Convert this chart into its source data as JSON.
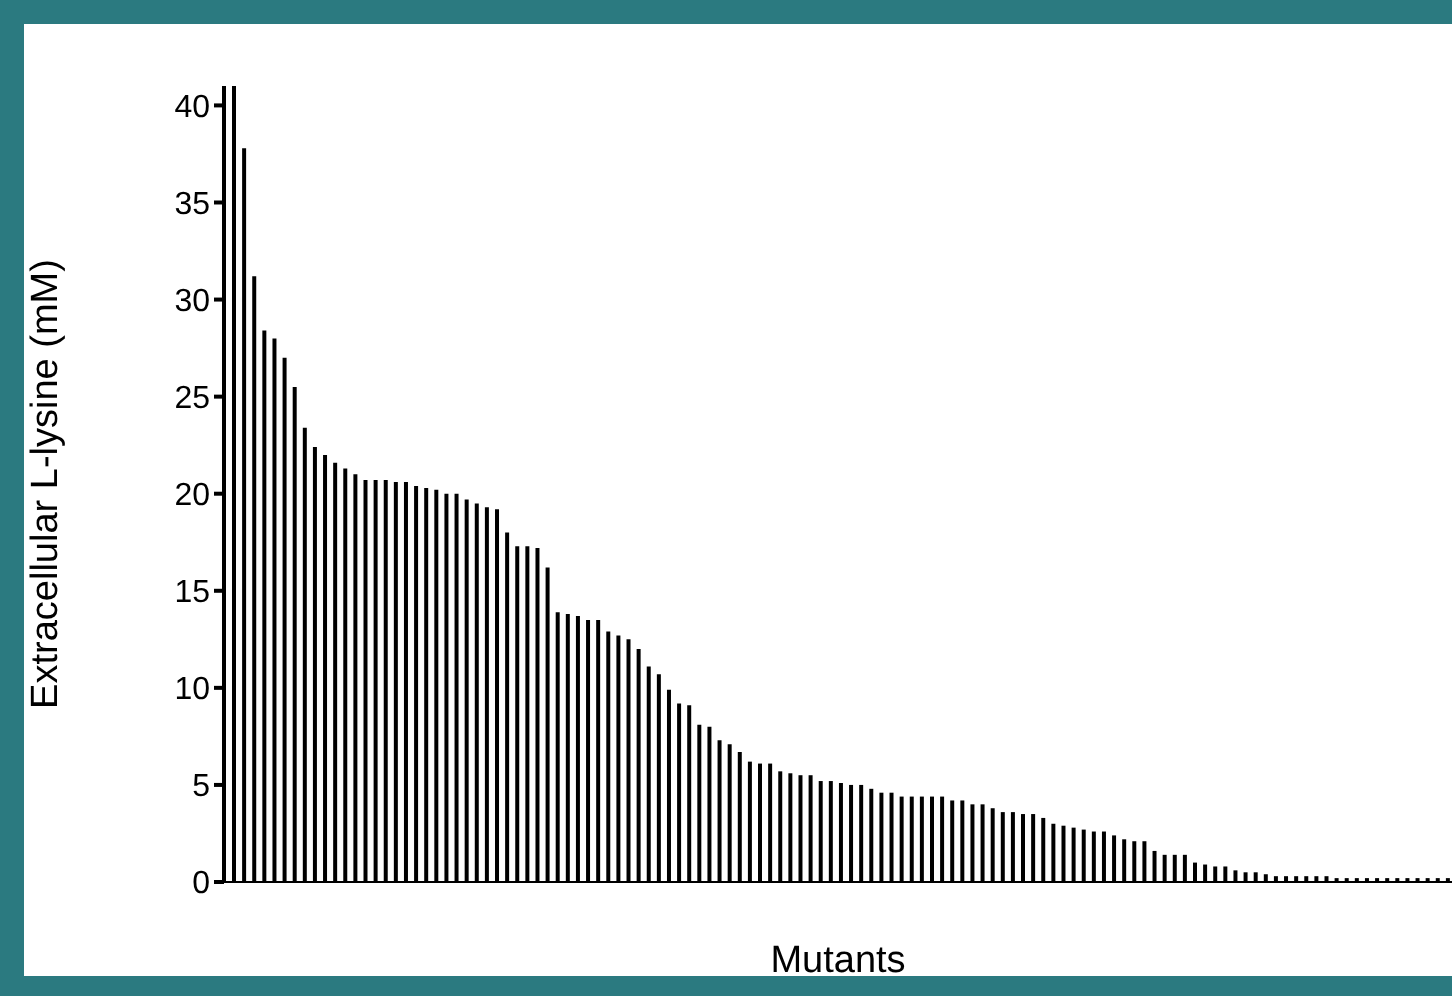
{
  "chart_data": {
    "type": "bar",
    "xlabel": "Mutants",
    "ylabel": "Extracellular L-lysine (mM)",
    "categories": [
      null,
      null,
      null,
      null,
      null,
      null,
      null,
      null,
      null,
      null,
      null,
      null,
      null,
      null,
      null,
      null,
      null,
      null,
      null,
      null,
      null,
      null,
      null,
      null,
      null,
      null,
      null,
      null,
      null,
      null,
      null,
      null,
      null,
      null,
      null,
      null,
      null,
      null,
      null,
      null,
      null,
      null,
      null,
      null,
      null,
      null,
      null,
      null,
      null,
      null,
      null,
      null,
      null,
      null,
      null,
      null,
      null,
      null,
      null,
      null,
      null,
      null,
      null,
      null,
      null,
      null,
      null,
      null,
      null,
      null,
      null,
      null,
      null,
      null,
      null,
      null,
      null,
      null,
      null,
      null,
      null,
      null,
      null,
      null,
      null,
      null,
      null,
      null,
      null,
      null,
      null,
      null,
      null,
      null,
      null,
      null,
      null,
      null,
      null,
      null,
      null,
      null,
      null,
      null,
      null,
      null,
      null,
      null,
      null,
      null,
      null,
      null,
      null,
      null,
      null,
      null,
      null,
      null,
      null,
      null,
      null
    ],
    "values": [
      41,
      37.8,
      31.2,
      28.4,
      28,
      27,
      25.5,
      23.4,
      22.4,
      22,
      21.6,
      21.3,
      21,
      20.7,
      20.7,
      20.7,
      20.6,
      20.6,
      20.4,
      20.3,
      20.2,
      20,
      20,
      19.7,
      19.5,
      19.3,
      19.2,
      18,
      17.3,
      17.3,
      17.2,
      16.2,
      13.9,
      13.8,
      13.7,
      13.5,
      13.5,
      12.9,
      12.7,
      12.5,
      12,
      11.1,
      10.7,
      9.9,
      9.2,
      9.1,
      8.1,
      8,
      7.3,
      7.1,
      6.7,
      6.2,
      6.1,
      6.1,
      5.7,
      5.6,
      5.5,
      5.5,
      5.2,
      5.2,
      5.1,
      5,
      5,
      4.8,
      4.6,
      4.6,
      4.4,
      4.4,
      4.4,
      4.4,
      4.4,
      4.2,
      4.2,
      4,
      4,
      3.8,
      3.6,
      3.6,
      3.5,
      3.5,
      3.3,
      3,
      2.9,
      2.8,
      2.7,
      2.6,
      2.6,
      2.4,
      2.2,
      2.1,
      2.1,
      1.6,
      1.4,
      1.4,
      1.4,
      1,
      0.9,
      0.8,
      0.8,
      0.6,
      0.5,
      0.5,
      0.4,
      0.3,
      0.3,
      0.3,
      0.3,
      0.3,
      0.3,
      0.2,
      0.2,
      0.2,
      0.2,
      0.2,
      0.2,
      0.2,
      0.2,
      0.2,
      0.2,
      0.2,
      0.2
    ],
    "color": "#000000",
    "ylim": [
      0,
      41
    ],
    "yticks": [
      0,
      5,
      10,
      15,
      20,
      25,
      30,
      35,
      40
    ],
    "tick_labels": "y"
  }
}
